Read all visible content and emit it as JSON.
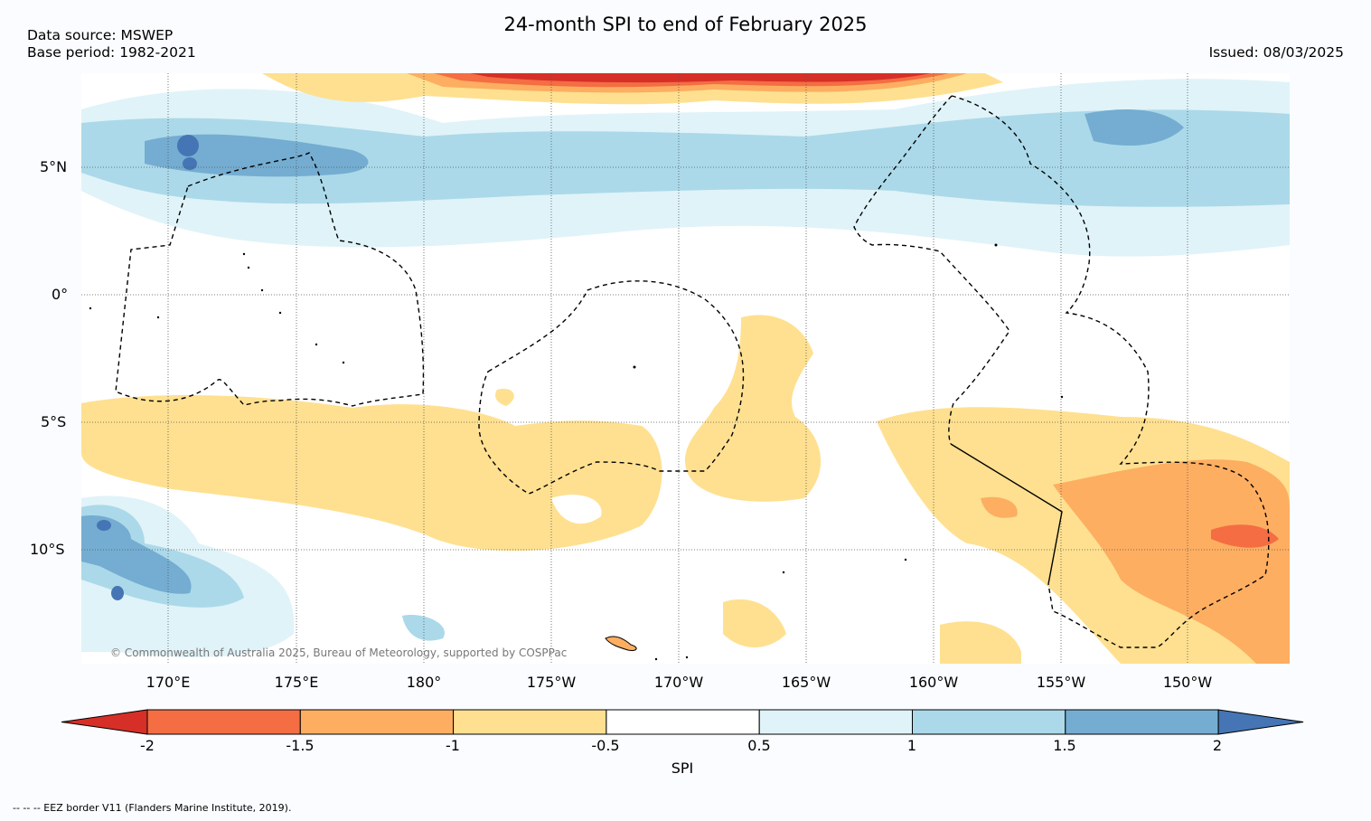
{
  "title": "24-month SPI to end of February 2025",
  "data_source": "Data source: MSWEP",
  "base_period": "Base period: 1982-2021",
  "issued": "Issued: 08/03/2025",
  "copyright": "© Commonwealth of Australia 2025, Bureau of Meteorology, supported by COSPPac",
  "lat_labels": [
    "5°N",
    "0°",
    "5°S",
    "10°S"
  ],
  "lon_labels": [
    "170°E",
    "175°E",
    "180°",
    "175°W",
    "170°W",
    "165°W",
    "160°W",
    "155°W",
    "150°W"
  ],
  "colorbar": {
    "label": "SPI",
    "ticks": [
      "-2",
      "-1.5",
      "-1",
      "-0.5",
      "0.5",
      "1",
      "1.5",
      "2"
    ],
    "colors": [
      "#d62f27",
      "#f46d43",
      "#fdae61",
      "#fee090",
      "#ffffff",
      "#e0f3f8",
      "#abd9e9",
      "#74add1",
      "#4575b4"
    ]
  },
  "legend_note": "-- -- -- EEZ border V11 (Flanders Marine Institute, 2019)."
}
